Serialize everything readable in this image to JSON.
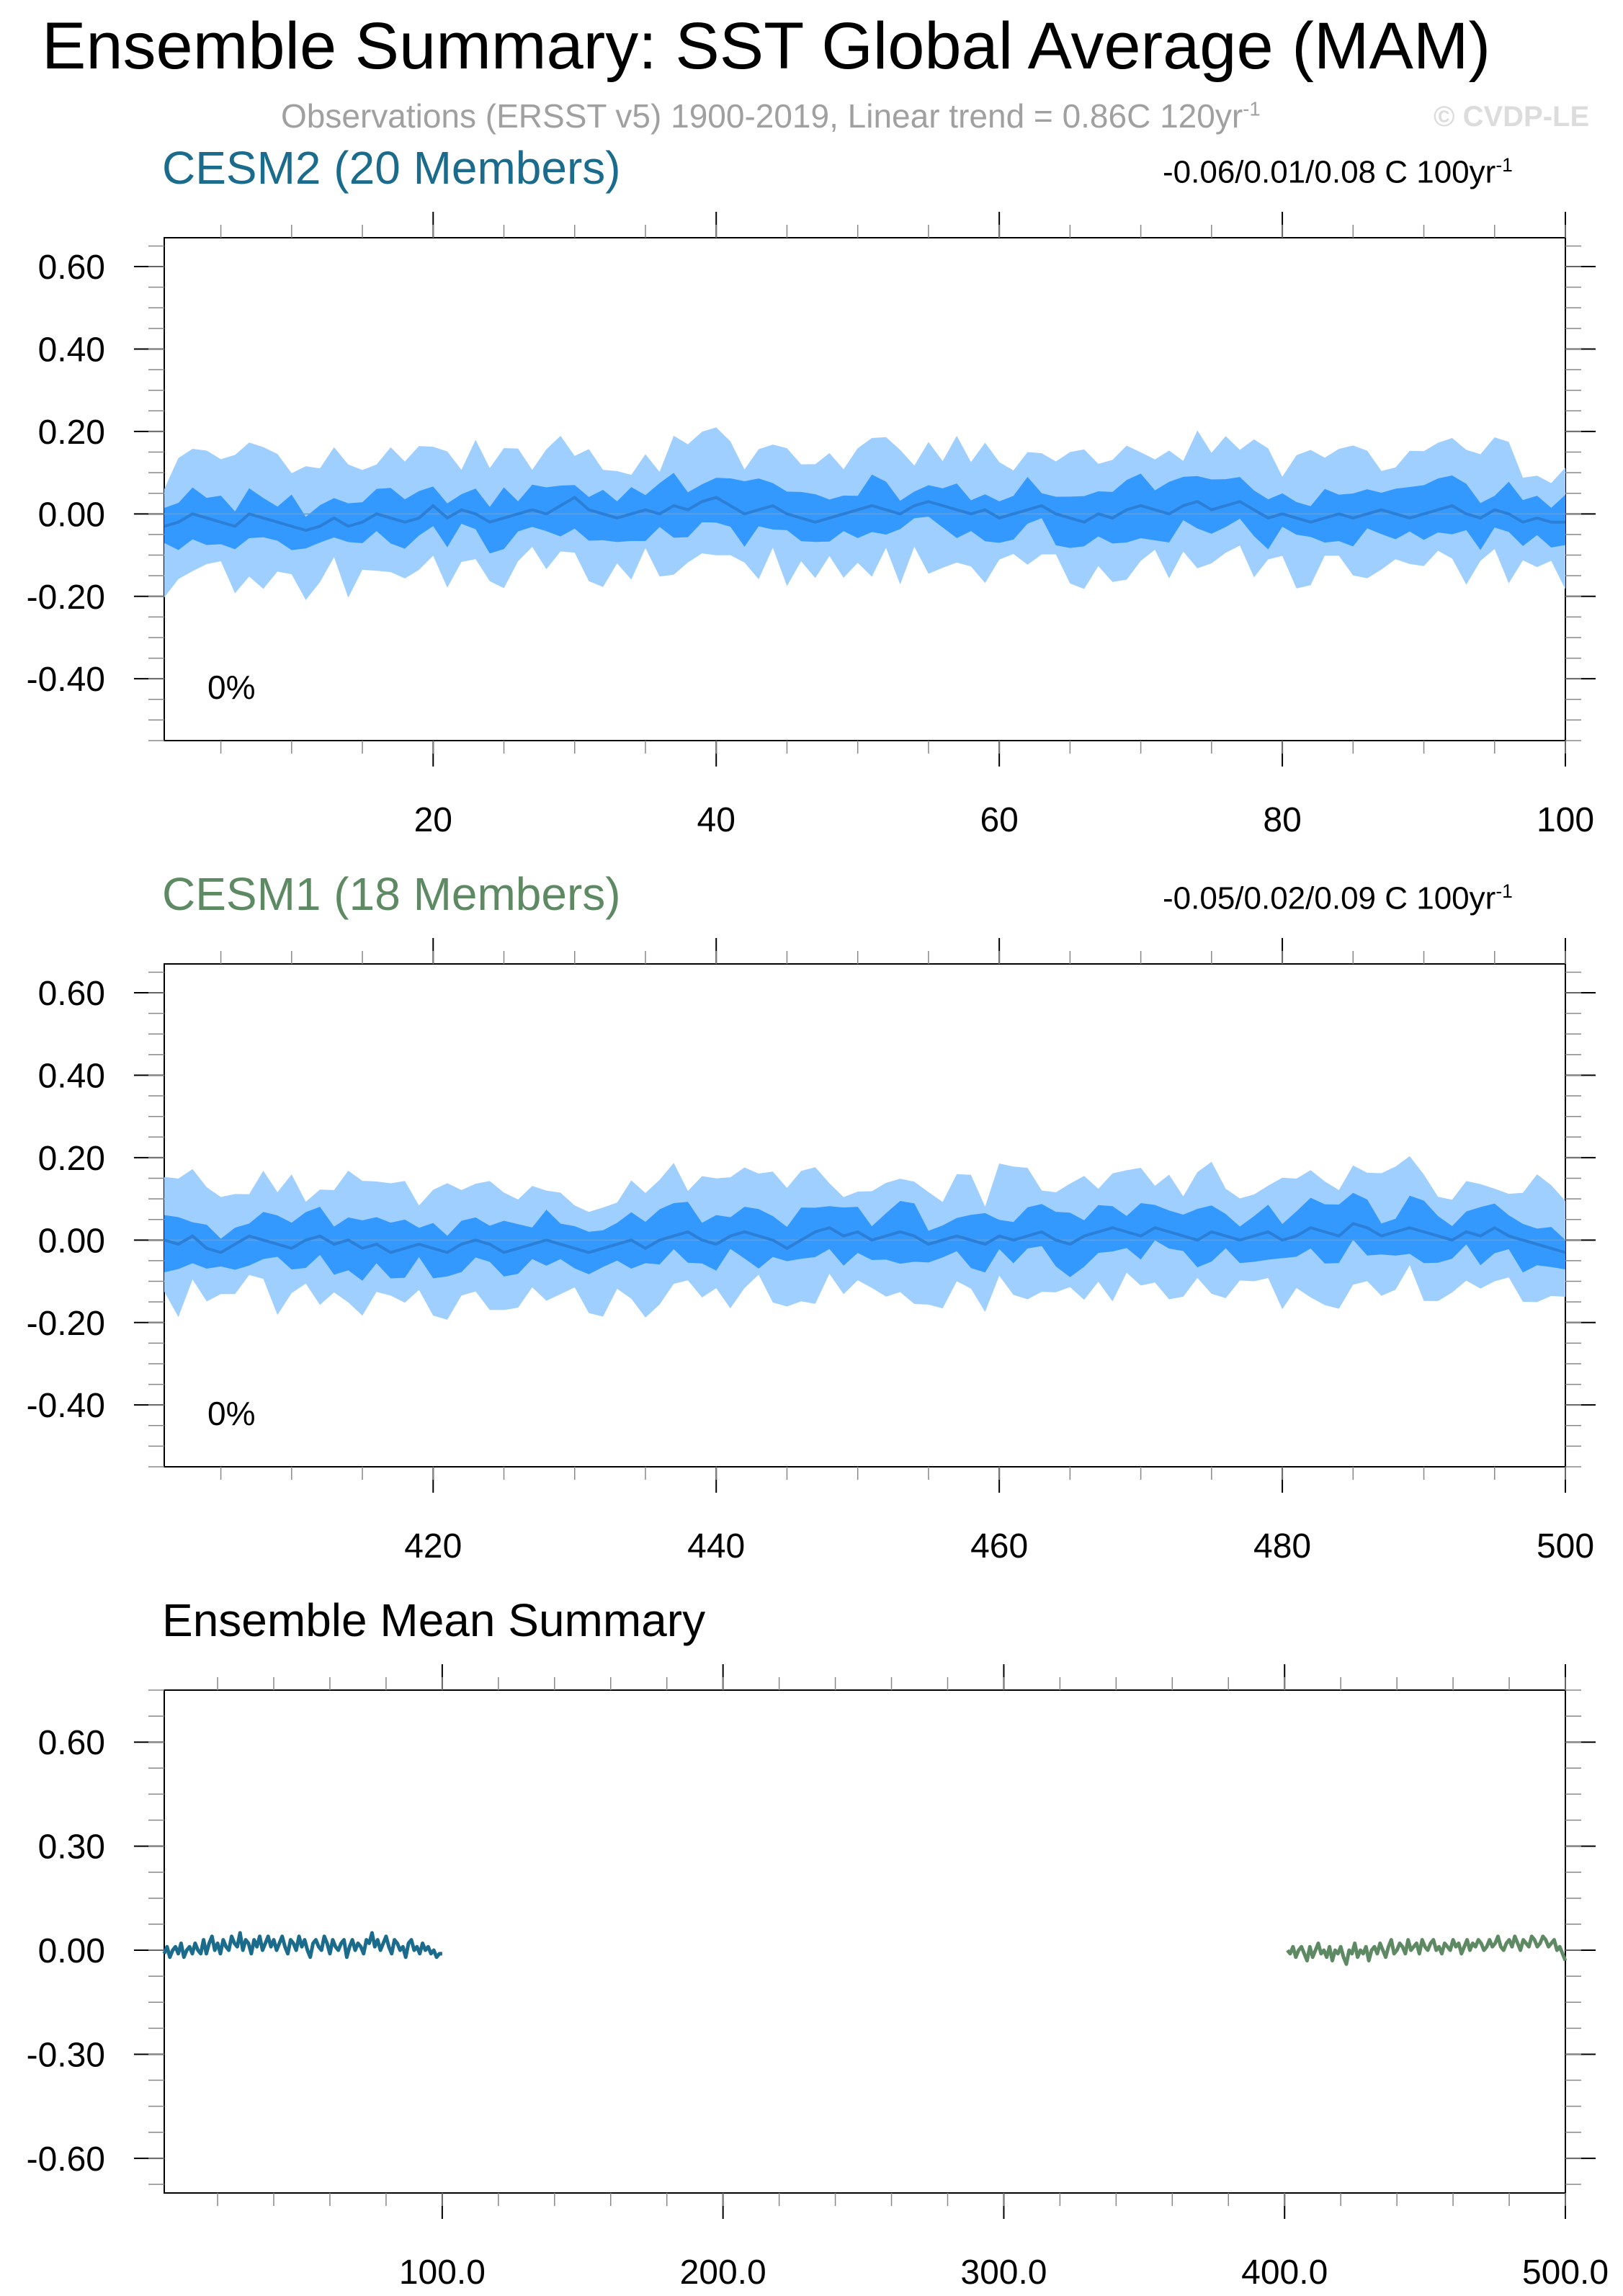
{
  "header": {
    "title": "Ensemble Summary: SST Global Average (MAM)",
    "subtitle": "Observations (ERSST v5) 1900-2019, Linear trend = 0.86C 120yr",
    "subtitle_sup": "-1",
    "watermark": "© CVDP-LE"
  },
  "colors": {
    "cesm2": "#1a6b8c",
    "cesm1": "#5e8a63",
    "band_outer": "#9fcfff",
    "band_inner": "#3399ff",
    "band_mean": "#2c7fd6",
    "axis": "#000000"
  },
  "panels": [
    {
      "id": "cesm2",
      "title": "CESM2 (20 Members)",
      "trend": "-0.06/0.01/0.08 C 100yr",
      "trend_sup": "-1",
      "pct": "0%",
      "xlim": [
        1,
        100
      ],
      "ylim": [
        -0.55,
        0.67
      ],
      "ticks_x": [
        "20",
        "40",
        "60",
        "80",
        "100"
      ],
      "ticks_y": [
        "0.60",
        "0.40",
        "0.20",
        "0.00",
        "-0.20",
        "-0.40"
      ]
    },
    {
      "id": "cesm1",
      "title": "CESM1 (18 Members)",
      "trend": "-0.05/0.02/0.09 C 100yr",
      "trend_sup": "-1",
      "pct": "0%",
      "xlim": [
        401,
        500
      ],
      "ylim": [
        -0.55,
        0.67
      ],
      "ticks_x": [
        "420",
        "440",
        "460",
        "480",
        "500"
      ],
      "ticks_y": [
        "0.60",
        "0.40",
        "0.20",
        "0.00",
        "-0.20",
        "-0.40"
      ]
    }
  ],
  "summary": {
    "title": "Ensemble Mean Summary",
    "xlim": [
      1,
      500
    ],
    "ylim": [
      -0.7,
      0.75
    ],
    "ticks_x": [
      "100.0",
      "200.0",
      "300.0",
      "400.0",
      "500.0"
    ],
    "ticks_y": [
      "0.60",
      "0.30",
      "0.00",
      "-0.30",
      "-0.60"
    ]
  },
  "chart_data": [
    {
      "type": "area",
      "title": "CESM2 (20 Members)",
      "xlim": [
        1,
        100
      ],
      "ylim": [
        -0.55,
        0.67
      ],
      "x_start": 1,
      "series": [
        {
          "name": "",
          "values": [
            -0.03,
            -0.02,
            0.0,
            -0.01,
            -0.02,
            -0.03,
            0.0,
            -0.01,
            -0.02,
            -0.03,
            -0.04,
            -0.03,
            -0.01,
            -0.03,
            -0.02,
            0.0,
            -0.01,
            -0.02,
            -0.01,
            0.02,
            -0.01,
            0.01,
            0.0,
            -0.02,
            -0.01,
            0.0,
            0.01,
            0.0,
            0.02,
            0.04,
            0.01,
            0.0,
            -0.01,
            0.0,
            0.01,
            0.0,
            0.02,
            0.01,
            0.03,
            0.04,
            0.02,
            0.0,
            0.01,
            0.02,
            0.0,
            -0.01,
            -0.02,
            -0.01,
            0.0,
            0.01,
            0.02,
            0.01,
            0.0,
            0.02,
            0.03,
            0.02,
            0.01,
            0.0,
            0.01,
            -0.01,
            0.0,
            0.01,
            0.02,
            0.0,
            -0.01,
            -0.02,
            0.0,
            -0.01,
            0.01,
            0.02,
            0.01,
            0.0,
            0.02,
            0.03,
            0.01,
            0.02,
            0.03,
            0.01,
            -0.01,
            0.0,
            -0.01,
            -0.02,
            -0.01,
            0.0,
            -0.01,
            0.0,
            0.01,
            0.0,
            -0.01,
            0.0,
            0.01,
            0.02,
            0.0,
            -0.01,
            0.01,
            0.0,
            -0.02,
            -0.01,
            -0.02,
            -0.02
          ]
        }
      ]
    },
    {
      "type": "area",
      "title": "CESM1 (18 Members)",
      "xlim": [
        401,
        500
      ],
      "ylim": [
        -0.55,
        0.67
      ],
      "x_start": 401,
      "series": [
        {
          "name": "",
          "values": [
            0.0,
            -0.01,
            0.01,
            -0.02,
            -0.03,
            -0.01,
            0.01,
            0.0,
            -0.01,
            -0.02,
            0.0,
            0.01,
            -0.01,
            0.0,
            -0.02,
            -0.01,
            -0.03,
            -0.02,
            -0.01,
            -0.02,
            -0.03,
            -0.01,
            0.0,
            -0.01,
            -0.03,
            -0.02,
            -0.01,
            0.0,
            -0.01,
            -0.02,
            -0.03,
            -0.02,
            -0.01,
            0.0,
            -0.02,
            0.0,
            0.01,
            0.02,
            0.0,
            -0.01,
            0.01,
            0.02,
            0.01,
            0.0,
            -0.02,
            0.0,
            0.02,
            0.03,
            0.01,
            0.02,
            0.0,
            0.01,
            0.02,
            0.01,
            -0.01,
            0.0,
            0.01,
            0.0,
            -0.01,
            0.01,
            0.0,
            0.01,
            0.02,
            0.0,
            -0.01,
            0.01,
            0.02,
            0.03,
            0.02,
            0.01,
            0.03,
            0.02,
            0.01,
            0.0,
            0.02,
            0.01,
            0.0,
            0.01,
            0.02,
            0.0,
            0.01,
            0.03,
            0.02,
            0.01,
            0.04,
            0.03,
            0.01,
            0.02,
            0.03,
            0.02,
            0.01,
            0.0,
            0.02,
            0.01,
            0.03,
            0.01,
            0.0,
            -0.01,
            -0.02,
            -0.03
          ]
        }
      ]
    },
    {
      "type": "line",
      "title": "Ensemble Mean Summary",
      "xlim": [
        1,
        500
      ],
      "ylim": [
        -0.7,
        0.75
      ],
      "series": [
        {
          "name": "",
          "x_start": 1,
          "color": "#1a6b8c",
          "values": [
            -0.01,
            0.01,
            -0.02,
            0.0,
            0.01,
            -0.01,
            0.02,
            -0.02,
            0.0,
            0.01,
            -0.01,
            0.02,
            0.0,
            -0.01,
            0.03,
            -0.01,
            0.02,
            0.04,
            0.0,
            0.02,
            -0.01,
            0.03,
            0.01,
            0.0,
            0.04,
            0.02,
            0.01,
            0.05,
            0.0,
            0.03,
            0.02,
            -0.01,
            0.03,
            0.01,
            0.04,
            0.0,
            0.02,
            0.04,
            0.01,
            0.03,
            0.0,
            0.02,
            0.04,
            0.01,
            -0.01,
            0.03,
            0.02,
            0.0,
            0.04,
            0.01,
            0.03,
            0.0,
            -0.02,
            0.02,
            0.03,
            0.01,
            0.0,
            0.04,
            0.02,
            -0.01,
            0.03,
            0.01,
            0.0,
            0.02,
            0.03,
            -0.02,
            0.01,
            0.03,
            0.0,
            0.02,
            0.01,
            -0.01,
            0.03,
            0.02,
            0.05,
            0.01,
            0.03,
            0.0,
            0.02,
            0.04,
            0.01,
            -0.01,
            0.03,
            0.02,
            0.0,
            0.01,
            -0.02,
            0.02,
            0.03,
            0.0,
            0.01,
            -0.01,
            0.02,
            0.0,
            0.01,
            -0.01,
            0.0,
            -0.02,
            -0.01,
            -0.01
          ]
        },
        {
          "name": "",
          "x_start": 401,
          "color": "#5e8a63",
          "values": [
            0.0,
            -0.01,
            0.01,
            -0.02,
            0.0,
            0.01,
            -0.01,
            -0.03,
            0.01,
            -0.02,
            0.0,
            0.02,
            -0.01,
            0.0,
            -0.02,
            0.01,
            -0.03,
            0.0,
            -0.01,
            0.01,
            -0.02,
            -0.04,
            0.0,
            -0.01,
            0.02,
            -0.02,
            0.0,
            -0.01,
            0.01,
            -0.03,
            0.0,
            0.01,
            -0.01,
            0.02,
            0.0,
            -0.02,
            0.01,
            0.03,
            -0.01,
            0.0,
            0.02,
            0.01,
            -0.01,
            0.03,
            0.0,
            0.01,
            0.02,
            -0.01,
            0.03,
            0.01,
            0.0,
            0.02,
            0.03,
            0.0,
            0.01,
            -0.01,
            0.02,
            0.01,
            0.0,
            0.03,
            0.01,
            0.02,
            -0.01,
            0.01,
            0.03,
            0.0,
            0.02,
            0.01,
            0.03,
            0.02,
            0.0,
            0.01,
            0.03,
            0.01,
            0.02,
            0.04,
            0.01,
            0.0,
            0.02,
            0.03,
            0.01,
            0.04,
            0.02,
            0.0,
            0.03,
            0.02,
            0.01,
            0.04,
            0.03,
            0.01,
            0.02,
            0.04,
            0.03,
            0.01,
            0.02,
            0.03,
            0.0,
            0.01,
            -0.01,
            -0.03
          ]
        }
      ]
    }
  ]
}
